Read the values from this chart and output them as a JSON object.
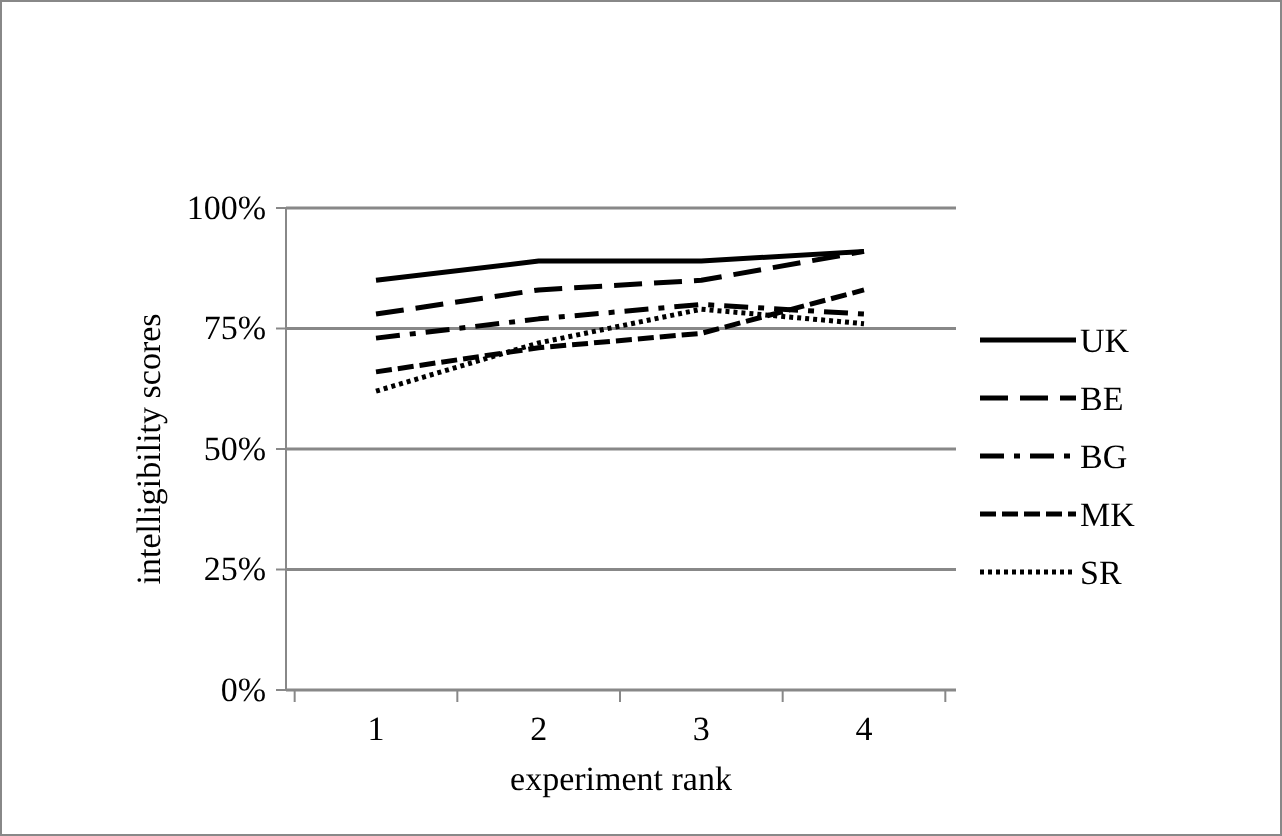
{
  "chart_data": {
    "type": "line",
    "xlabel": "experiment rank",
    "ylabel": "intelligibility  scores",
    "categories": [
      "1",
      "2",
      "3",
      "4"
    ],
    "ylim": [
      0,
      1
    ],
    "yticks": [
      {
        "value": 0,
        "label": "0%"
      },
      {
        "value": 0.25,
        "label": "25%"
      },
      {
        "value": 0.5,
        "label": "50%"
      },
      {
        "value": 0.75,
        "label": "75%"
      },
      {
        "value": 1,
        "label": "100%"
      }
    ],
    "grid": "y",
    "legend": "right",
    "marker": "none",
    "series": [
      {
        "name": "UK",
        "color": "#000000",
        "line_style": "solid",
        "values": [
          0.85,
          0.89,
          0.89,
          0.91
        ]
      },
      {
        "name": "BE",
        "color": "#000000",
        "line_style": "longdash",
        "values": [
          0.78,
          0.83,
          0.85,
          0.91
        ]
      },
      {
        "name": "BG",
        "color": "#000000",
        "line_style": "dashdot",
        "values": [
          0.73,
          0.77,
          0.8,
          0.78
        ]
      },
      {
        "name": "MK",
        "color": "#000000",
        "line_style": "dashed",
        "values": [
          0.66,
          0.71,
          0.74,
          0.83
        ]
      },
      {
        "name": "SR",
        "color": "#000000",
        "line_style": "dotted",
        "values": [
          0.62,
          0.72,
          0.79,
          0.76
        ]
      }
    ]
  }
}
